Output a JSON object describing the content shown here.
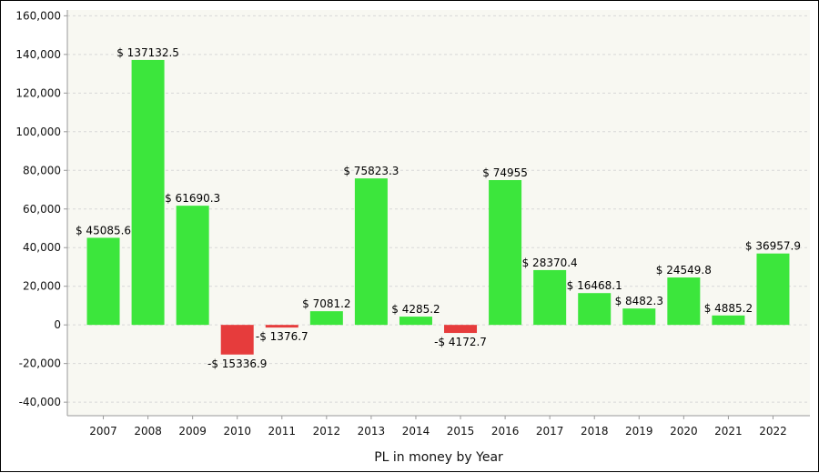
{
  "chart_data": {
    "type": "bar",
    "title": "",
    "xlabel": "PL in money by Year",
    "ylabel": "",
    "ylim": [
      -47000,
      163000
    ],
    "yticks": [
      -40000,
      -20000,
      0,
      20000,
      40000,
      60000,
      80000,
      100000,
      120000,
      140000,
      160000
    ],
    "ytick_labels": [
      "-40,000",
      "-20,000",
      "0",
      "20,000",
      "40,000",
      "60,000",
      "80,000",
      "100,000",
      "120,000",
      "140,000",
      "160,000"
    ],
    "grid": true,
    "categories": [
      "2007",
      "2008",
      "2009",
      "2010",
      "2011",
      "2012",
      "2013",
      "2014",
      "2015",
      "2016",
      "2017",
      "2018",
      "2019",
      "2020",
      "2021",
      "2022"
    ],
    "values": [
      45085.6,
      137132.5,
      61690.3,
      -15336.9,
      -1376.7,
      7081.2,
      75823.3,
      4285.2,
      -4172.7,
      74955,
      28370.4,
      16468.1,
      8482.3,
      24549.8,
      4885.2,
      36957.9
    ],
    "data_labels": [
      "$ 45085.6",
      "$ 137132.5",
      "$ 61690.3",
      "-$ 15336.9",
      "-$ 1376.7",
      "$ 7081.2",
      "$ 75823.3",
      "$ 4285.2",
      "-$ 4172.7",
      "$ 74955",
      "$ 28370.4",
      "$ 16468.1",
      "$ 8482.3",
      "$ 24549.8",
      "$ 4885.2",
      "$ 36957.9"
    ],
    "colors": {
      "positive": "#3ce63c",
      "negative": "#e63c3c",
      "plot_background": "#f8f8f2",
      "grid": "#d8d8d8",
      "axis": "#999999"
    }
  }
}
